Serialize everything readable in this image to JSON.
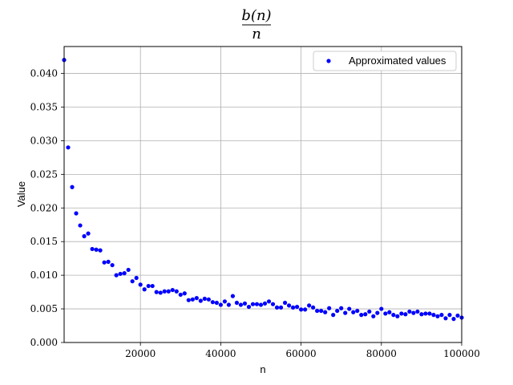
{
  "chart_data": {
    "type": "scatter",
    "title_numerator": "b(n)",
    "title_denominator": "n",
    "xlabel": "n",
    "ylabel": "Value",
    "xlim": [
      1000,
      100000
    ],
    "ylim": [
      0,
      0.044
    ],
    "xticks": [
      20000,
      40000,
      60000,
      80000,
      100000
    ],
    "xtick_labels": [
      "20000",
      "40000",
      "60000",
      "80000",
      "100000"
    ],
    "yticks": [
      0,
      0.005,
      0.01,
      0.015,
      0.02,
      0.025,
      0.03,
      0.035,
      0.04
    ],
    "ytick_labels": [
      "0.000",
      "0.005",
      "0.010",
      "0.015",
      "0.020",
      "0.025",
      "0.030",
      "0.035",
      "0.040"
    ],
    "grid": true,
    "legend_position": "top-right",
    "marker_color": "#0000ff",
    "series": [
      {
        "name": "Approximated values",
        "x": [
          1000,
          2000,
          3000,
          4000,
          5000,
          6000,
          7000,
          8000,
          9000,
          10000,
          11000,
          12000,
          13000,
          14000,
          15000,
          16000,
          17000,
          18000,
          19000,
          20000,
          21000,
          22000,
          23000,
          24000,
          25000,
          26000,
          27000,
          28000,
          29000,
          30000,
          31000,
          32000,
          33000,
          34000,
          35000,
          36000,
          37000,
          38000,
          39000,
          40000,
          41000,
          42000,
          43000,
          44000,
          45000,
          46000,
          47000,
          48000,
          49000,
          50000,
          51000,
          52000,
          53000,
          54000,
          55000,
          56000,
          57000,
          58000,
          59000,
          60000,
          61000,
          62000,
          63000,
          64000,
          65000,
          66000,
          67000,
          68000,
          69000,
          70000,
          71000,
          72000,
          73000,
          74000,
          75000,
          76000,
          77000,
          78000,
          79000,
          80000,
          81000,
          82000,
          83000,
          84000,
          85000,
          86000,
          87000,
          88000,
          89000,
          90000,
          91000,
          92000,
          93000,
          94000,
          95000,
          96000,
          97000,
          98000,
          99000,
          100000
        ],
        "y": [
          0.042,
          0.029,
          0.0231,
          0.0192,
          0.0174,
          0.0158,
          0.0162,
          0.0139,
          0.0138,
          0.0137,
          0.0119,
          0.012,
          0.0115,
          0.01,
          0.0102,
          0.0103,
          0.0108,
          0.0091,
          0.0096,
          0.0086,
          0.0079,
          0.0084,
          0.0084,
          0.0075,
          0.0074,
          0.0076,
          0.0076,
          0.0078,
          0.0076,
          0.0071,
          0.0073,
          0.0063,
          0.0064,
          0.0066,
          0.0062,
          0.0065,
          0.0064,
          0.006,
          0.0059,
          0.0056,
          0.0061,
          0.0056,
          0.0069,
          0.0059,
          0.0056,
          0.0058,
          0.0053,
          0.0057,
          0.0057,
          0.0056,
          0.0058,
          0.0061,
          0.0057,
          0.0052,
          0.0052,
          0.0059,
          0.0055,
          0.0052,
          0.0053,
          0.0049,
          0.0049,
          0.0055,
          0.0052,
          0.0047,
          0.0047,
          0.0045,
          0.0051,
          0.0041,
          0.0047,
          0.0051,
          0.0044,
          0.005,
          0.0045,
          0.0047,
          0.0041,
          0.0042,
          0.0046,
          0.0039,
          0.0044,
          0.005,
          0.0043,
          0.0045,
          0.0041,
          0.0039,
          0.0043,
          0.0042,
          0.0046,
          0.0044,
          0.0046,
          0.0042,
          0.0043,
          0.0043,
          0.0041,
          0.0039,
          0.0041,
          0.0036,
          0.0041,
          0.0035,
          0.004,
          0.0037
        ]
      }
    ]
  }
}
